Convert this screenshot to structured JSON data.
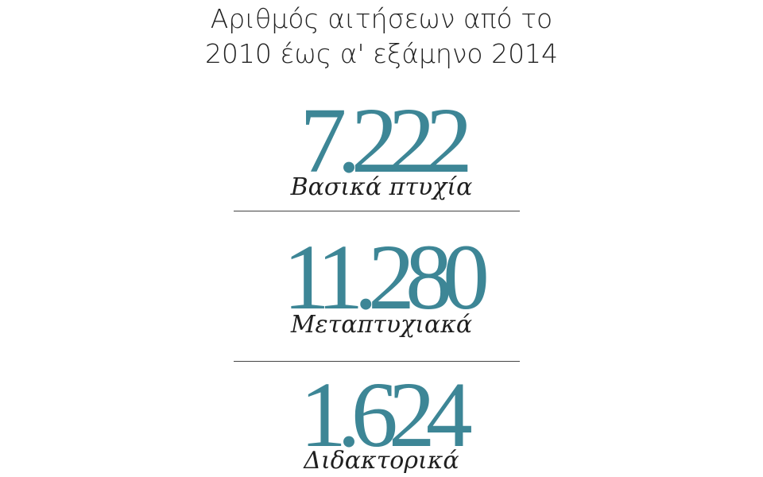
{
  "title": {
    "line1": "Αριθμός αιτήσεων από το",
    "line2": "2010 έως α' εξάμηνο 2014"
  },
  "accent_color": "#3d8696",
  "stats": [
    {
      "value": "7.222",
      "label": "Βασικά πτυχία"
    },
    {
      "value": "11.280",
      "label": "Μεταπτυχιακά"
    },
    {
      "value": "1.624",
      "label": "Διδακτορικά"
    }
  ]
}
